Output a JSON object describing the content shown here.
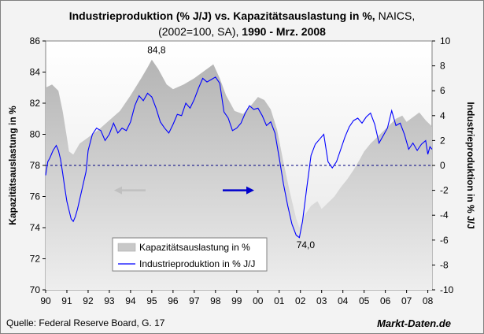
{
  "title": {
    "part1": "Industrieproduktion (% J/J) vs. Kapazitätsauslastung in %,",
    "part2": " NAICS,",
    "part3": "(2002=100, SA),",
    "part4": " 1990 - Mrz. 2008"
  },
  "source": "Quelle: Federal Reserve Board, G. 17",
  "brand": "Markt-Daten.de",
  "chart_data": {
    "type": "area+line",
    "left_axis": {
      "label": "Kapazitätsauslastung in %",
      "min": 70,
      "max": 86,
      "ticks": [
        "70",
        "72",
        "74",
        "76",
        "78",
        "80",
        "82",
        "84",
        "86"
      ]
    },
    "right_axis": {
      "label": "Industrieproduktion in % J/J",
      "min": -10,
      "max": 10,
      "ticks": [
        "-10",
        "-8",
        "-6",
        "-4",
        "-2",
        "0",
        "2",
        "4",
        "6",
        "8",
        "10"
      ]
    },
    "x_axis": {
      "ticks": [
        "90",
        "91",
        "92",
        "93",
        "94",
        "95",
        "96",
        "97",
        "98",
        "99",
        "00",
        "01",
        "02",
        "03",
        "04",
        "05",
        "06",
        "07",
        "08"
      ],
      "min": 1990.0,
      "max": 2008.2
    },
    "legend": {
      "area": "Kapazitätsauslastung in %",
      "line": "Industrieproduktion in % J/J",
      "position": "bottom-left"
    },
    "annotations": [
      {
        "text": "84,8",
        "x": 1995.0,
        "value": 84.8
      },
      {
        "text": "74,0",
        "x": 2001.95,
        "value": 74.0
      }
    ],
    "series": [
      {
        "name": "Kapazitätsauslastung in %",
        "axis": "left",
        "type": "area",
        "x": [
          1990.0,
          1990.3,
          1990.6,
          1990.8,
          1991.0,
          1991.1,
          1991.3,
          1991.6,
          1992.0,
          1992.5,
          1993.0,
          1993.5,
          1994.0,
          1994.5,
          1994.8,
          1995.0,
          1995.3,
          1995.7,
          1996.0,
          1996.5,
          1997.0,
          1997.5,
          1997.9,
          1998.2,
          1998.5,
          1998.9,
          1999.3,
          1999.7,
          2000.0,
          2000.3,
          2000.6,
          2000.9,
          2001.2,
          2001.5,
          2001.8,
          2001.95,
          2002.2,
          2002.5,
          2002.8,
          2003.0,
          2003.3,
          2003.6,
          2003.9,
          2004.2,
          2004.5,
          2004.8,
          2005.0,
          2005.3,
          2005.6,
          2005.9,
          2006.2,
          2006.5,
          2006.8,
          2007.0,
          2007.3,
          2007.6,
          2007.9,
          2008.2
        ],
        "values": [
          83.0,
          83.2,
          82.8,
          81.5,
          79.8,
          78.9,
          78.7,
          79.4,
          79.8,
          80.3,
          80.9,
          81.5,
          82.5,
          83.6,
          84.3,
          84.8,
          84.2,
          83.2,
          82.9,
          83.2,
          83.6,
          84.1,
          84.5,
          83.6,
          82.5,
          81.5,
          81.3,
          81.9,
          82.4,
          82.2,
          81.6,
          80.3,
          78.2,
          76.3,
          74.6,
          74.0,
          74.8,
          75.4,
          75.7,
          75.2,
          75.6,
          76.0,
          76.6,
          77.1,
          77.7,
          78.4,
          78.9,
          79.4,
          79.8,
          80.2,
          80.6,
          81.0,
          81.2,
          80.8,
          81.1,
          81.4,
          80.9,
          80.5
        ]
      },
      {
        "name": "Industrieproduktion in % J/J",
        "axis": "right",
        "type": "line",
        "x": [
          1990.0,
          1990.1,
          1990.2,
          1990.35,
          1990.5,
          1990.6,
          1990.7,
          1990.8,
          1990.9,
          1991.0,
          1991.1,
          1991.2,
          1991.3,
          1991.4,
          1991.5,
          1991.7,
          1991.9,
          1992.0,
          1992.2,
          1992.4,
          1992.6,
          1992.8,
          1993.0,
          1993.2,
          1993.4,
          1993.6,
          1993.8,
          1994.0,
          1994.2,
          1994.4,
          1994.6,
          1994.8,
          1995.0,
          1995.2,
          1995.4,
          1995.6,
          1995.8,
          1996.0,
          1996.2,
          1996.4,
          1996.6,
          1996.8,
          1997.0,
          1997.2,
          1997.4,
          1997.6,
          1997.8,
          1998.0,
          1998.2,
          1998.4,
          1998.6,
          1998.8,
          1999.0,
          1999.2,
          1999.4,
          1999.6,
          1999.8,
          2000.0,
          2000.2,
          2000.4,
          2000.6,
          2000.8,
          2001.0,
          2001.2,
          2001.4,
          2001.6,
          2001.8,
          2001.95,
          2002.1,
          2002.3,
          2002.5,
          2002.7,
          2002.9,
          2003.1,
          2003.3,
          2003.5,
          2003.7,
          2003.9,
          2004.1,
          2004.3,
          2004.5,
          2004.7,
          2004.9,
          2005.1,
          2005.3,
          2005.5,
          2005.7,
          2005.9,
          2006.1,
          2006.3,
          2006.5,
          2006.7,
          2006.9,
          2007.1,
          2007.3,
          2007.5,
          2007.7,
          2007.9,
          2008.0,
          2008.1,
          2008.2
        ],
        "values": [
          -0.8,
          0.3,
          0.6,
          1.2,
          1.6,
          1.2,
          0.5,
          -0.6,
          -1.8,
          -2.9,
          -3.6,
          -4.3,
          -4.5,
          -4.1,
          -3.5,
          -2.0,
          -0.5,
          1.2,
          2.5,
          3.0,
          2.8,
          2.0,
          2.5,
          3.4,
          2.6,
          3.0,
          2.8,
          3.5,
          4.8,
          5.6,
          5.2,
          5.8,
          5.5,
          4.6,
          3.5,
          3.0,
          2.6,
          3.3,
          4.1,
          4.0,
          5.0,
          4.6,
          5.3,
          6.2,
          7.0,
          6.7,
          6.9,
          7.1,
          6.6,
          4.3,
          3.8,
          2.8,
          3.0,
          3.4,
          4.2,
          4.8,
          4.5,
          4.6,
          4.0,
          3.2,
          3.5,
          2.6,
          0.6,
          -1.5,
          -3.2,
          -4.7,
          -5.6,
          -5.8,
          -4.5,
          -1.8,
          0.8,
          1.7,
          2.1,
          2.5,
          0.3,
          -0.2,
          0.3,
          1.3,
          2.3,
          3.1,
          3.6,
          3.8,
          3.4,
          3.9,
          4.2,
          3.3,
          1.8,
          2.4,
          3.0,
          4.4,
          3.2,
          3.4,
          2.5,
          1.3,
          1.8,
          1.2,
          1.7,
          2.0,
          0.9,
          1.5,
          1.3
        ]
      }
    ],
    "zero_line": {
      "axis": "right",
      "value": 0,
      "style": "dashed"
    },
    "arrows": [
      {
        "direction": "left",
        "refers_to": "left_axis",
        "color": "#c0c0c0"
      },
      {
        "direction": "right",
        "refers_to": "right_axis",
        "color": "#0000cc"
      }
    ]
  }
}
